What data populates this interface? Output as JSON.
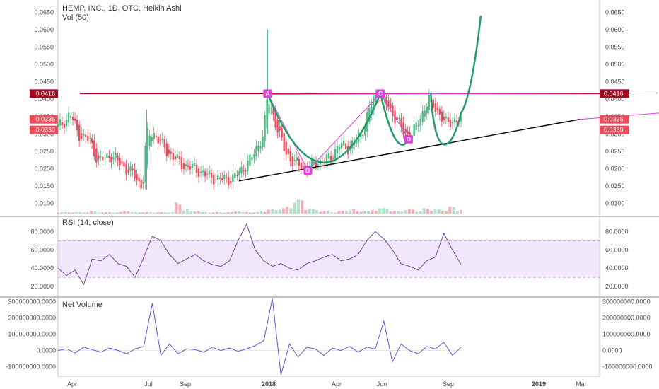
{
  "header": {
    "symbol_line": "HEMP, INC., 1D, OTC, Heikin Ashi",
    "volume_label": "Vol (50)"
  },
  "colors": {
    "up": "#53b987",
    "down": "#eb4d5c",
    "resistance": "#a50a23",
    "pattern": "#e040e0",
    "cup": "#1f9e6a",
    "rsi": "#7b3fa0",
    "rsi_band": "#e6d9f7",
    "net_volume": "#5b5bd6",
    "trendline": "#111111"
  },
  "chart_data": [
    {
      "type": "candlestick",
      "title": "HEMP, INC., 1D, OTC, Heikin Ashi",
      "y_axis_ticks": [
        "0.0650",
        "0.0600",
        "0.0550",
        "0.0500",
        "0.0450",
        "0.0400",
        "0.0350",
        "0.0300",
        "0.0250",
        "0.0200",
        "0.0150",
        "0.0100"
      ],
      "y_range": [
        0.0075,
        0.0675
      ],
      "x_ticks": [
        "Apr",
        "Jul",
        "Sep",
        "2018",
        "Apr",
        "Jun",
        "Sep",
        "2019",
        "Mar"
      ],
      "price_tags": [
        {
          "text": "0.0416",
          "value": 0.0416,
          "color": "#a50a23"
        },
        {
          "text": "0.0336",
          "value": 0.0336,
          "color": "#eb4d5c"
        },
        {
          "text": "0.0330",
          "value": 0.033,
          "color": "#eb4d5c"
        }
      ],
      "resistance_level": 0.0416,
      "pattern_points": [
        {
          "label": "A",
          "x": 0.52,
          "y": 0.0416
        },
        {
          "label": "B",
          "x": 0.62,
          "y": 0.0195
        },
        {
          "label": "C",
          "x": 0.8,
          "y": 0.0416
        },
        {
          "label": "D",
          "x": 0.87,
          "y": 0.0285
        }
      ],
      "approx_close_path": [
        [
          0.0,
          0.032
        ],
        [
          0.02,
          0.034
        ],
        [
          0.03,
          0.036
        ],
        [
          0.05,
          0.03
        ],
        [
          0.08,
          0.028
        ],
        [
          0.1,
          0.022
        ],
        [
          0.13,
          0.024
        ],
        [
          0.16,
          0.021
        ],
        [
          0.19,
          0.018
        ],
        [
          0.2,
          0.016
        ],
        [
          0.21,
          0.015
        ],
        [
          0.22,
          0.03
        ],
        [
          0.24,
          0.03
        ],
        [
          0.27,
          0.025
        ],
        [
          0.29,
          0.023
        ],
        [
          0.31,
          0.021
        ],
        [
          0.34,
          0.02
        ],
        [
          0.37,
          0.018
        ],
        [
          0.4,
          0.017
        ],
        [
          0.43,
          0.017
        ],
        [
          0.45,
          0.019
        ],
        [
          0.48,
          0.023
        ],
        [
          0.51,
          0.03
        ],
        [
          0.52,
          0.041
        ],
        [
          0.54,
          0.033
        ],
        [
          0.56,
          0.026
        ],
        [
          0.58,
          0.022
        ],
        [
          0.6,
          0.021
        ],
        [
          0.62,
          0.02
        ],
        [
          0.64,
          0.022
        ],
        [
          0.66,
          0.022
        ],
        [
          0.68,
          0.024
        ],
        [
          0.7,
          0.027
        ],
        [
          0.72,
          0.026
        ],
        [
          0.74,
          0.028
        ],
        [
          0.76,
          0.032
        ],
        [
          0.78,
          0.04
        ],
        [
          0.8,
          0.041
        ],
        [
          0.82,
          0.038
        ],
        [
          0.84,
          0.034
        ],
        [
          0.86,
          0.03
        ],
        [
          0.88,
          0.03
        ],
        [
          0.9,
          0.035
        ],
        [
          0.92,
          0.04
        ],
        [
          0.94,
          0.037
        ],
        [
          0.96,
          0.033
        ],
        [
          0.98,
          0.034
        ],
        [
          1.0,
          0.0336
        ]
      ],
      "volume_levels": [
        1,
        1,
        1,
        1,
        2,
        1,
        1,
        1,
        2,
        1,
        1,
        1,
        1,
        1,
        8,
        3,
        2,
        1,
        1,
        1,
        1,
        2,
        1,
        1,
        2,
        3,
        4,
        5,
        10,
        4,
        3,
        2,
        1,
        2,
        3,
        2,
        2,
        3,
        4,
        2,
        2,
        3,
        2,
        4,
        3,
        2,
        5,
        3
      ]
    },
    {
      "type": "line",
      "title": "RSI (14, close)",
      "y_axis_ticks": [
        "80.0000",
        "60.0000",
        "40.0000",
        "20.0000"
      ],
      "y_range": [
        10,
        95
      ],
      "band": [
        30,
        70
      ],
      "values": [
        40,
        32,
        38,
        22,
        50,
        48,
        55,
        45,
        42,
        30,
        52,
        75,
        70,
        55,
        45,
        50,
        55,
        48,
        44,
        42,
        48,
        70,
        88,
        60,
        48,
        42,
        45,
        40,
        38,
        45,
        48,
        52,
        55,
        48,
        50,
        55,
        70,
        80,
        72,
        60,
        45,
        42,
        38,
        48,
        52,
        78,
        60,
        44
      ]
    },
    {
      "type": "line",
      "title": "Net Volume",
      "y_axis_ticks": [
        "300000000.0000",
        "200000000.0000",
        "100000000.0000",
        "0.0000",
        "-100000000.0000"
      ],
      "y_range": [
        -150000000,
        320000000
      ],
      "values": [
        0,
        10000000,
        -15000000,
        20000000,
        5000000,
        -10000000,
        15000000,
        0,
        -20000000,
        10000000,
        25000000,
        290000000,
        -30000000,
        40000000,
        -20000000,
        10000000,
        5000000,
        -10000000,
        20000000,
        0,
        15000000,
        -5000000,
        10000000,
        30000000,
        60000000,
        320000000,
        -150000000,
        40000000,
        -40000000,
        20000000,
        10000000,
        -30000000,
        15000000,
        0,
        25000000,
        -10000000,
        20000000,
        10000000,
        180000000,
        -70000000,
        40000000,
        0,
        -20000000,
        25000000,
        10000000,
        50000000,
        -30000000,
        20000000
      ]
    }
  ]
}
